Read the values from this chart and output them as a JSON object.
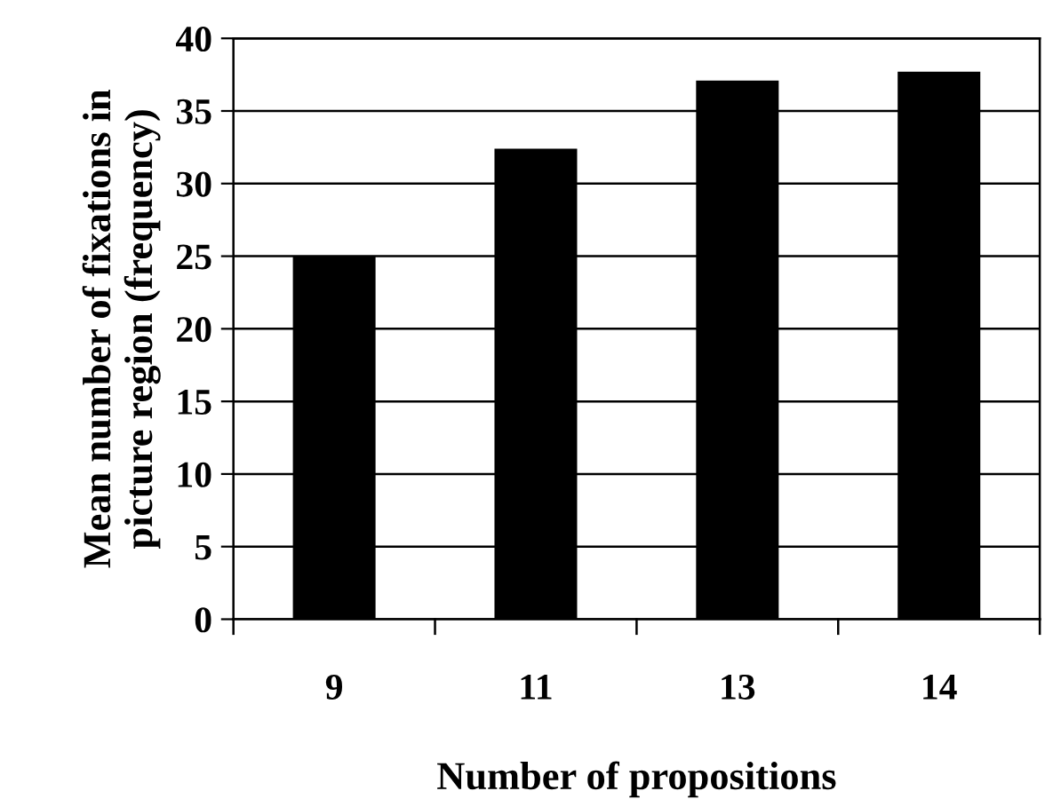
{
  "chart_data": {
    "type": "bar",
    "xlabel": "Number of propositions",
    "ylabel": "Mean number of fixations in\npicture region (frequency)",
    "categories": [
      "9",
      "11",
      "13",
      "14"
    ],
    "values": [
      25.0,
      32.4,
      37.1,
      37.7
    ],
    "color": "#000000",
    "ylim": [
      0,
      40
    ],
    "yticks": [
      0,
      5,
      10,
      15,
      20,
      25,
      30,
      35,
      40
    ],
    "grid": "y",
    "legend": false
  }
}
